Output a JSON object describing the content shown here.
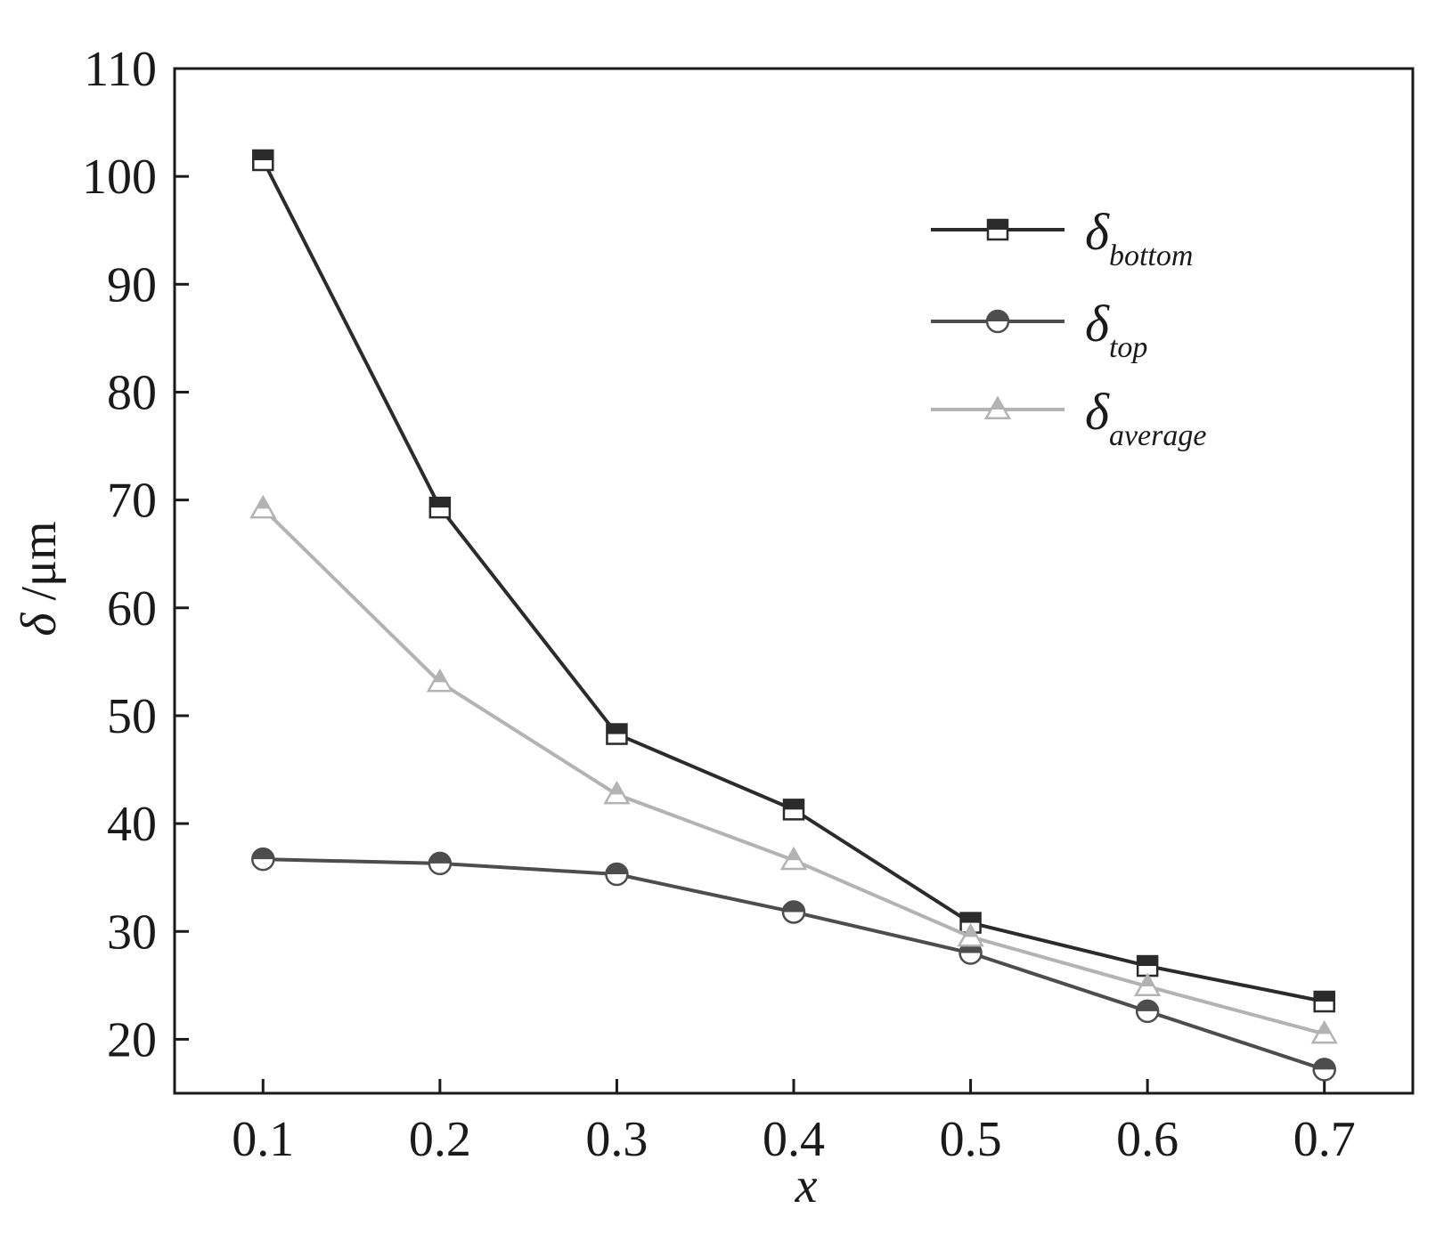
{
  "chart_data": {
    "type": "line",
    "xlabel": "x",
    "ylabel": "δ /μm",
    "ylabel_symbol": "δ",
    "ylabel_unit": " /μm",
    "xlim": [
      0.05,
      0.75
    ],
    "ylim": [
      15,
      110
    ],
    "x": [
      0.1,
      0.2,
      0.3,
      0.4,
      0.5,
      0.6,
      0.7
    ],
    "x_ticks": [
      0.1,
      0.2,
      0.3,
      0.4,
      0.5,
      0.6,
      0.7
    ],
    "x_tick_labels": [
      "0.1",
      "0.2",
      "0.3",
      "0.4",
      "0.5",
      "0.6",
      "0.7"
    ],
    "y_ticks": [
      20,
      30,
      40,
      50,
      60,
      70,
      80,
      90,
      100,
      110
    ],
    "y_tick_labels": [
      "20",
      "30",
      "40",
      "50",
      "60",
      "70",
      "80",
      "90",
      "100",
      "110"
    ],
    "grid": false,
    "legend_position": "top-right",
    "series": [
      {
        "name": "δbottom",
        "symbol": "δ",
        "subscript": "bottom",
        "marker": "square",
        "color": "#2b2b2b",
        "values": [
          101.5,
          69.3,
          48.3,
          41.3,
          30.8,
          26.8,
          23.5
        ]
      },
      {
        "name": "δtop",
        "symbol": "δ",
        "subscript": "top",
        "marker": "circle",
        "color": "#4d4d4d",
        "values": [
          36.7,
          36.3,
          35.3,
          31.8,
          28.0,
          22.6,
          17.2
        ]
      },
      {
        "name": "δaverage",
        "symbol": "δ",
        "subscript": "average",
        "marker": "triangle",
        "color": "#b3b3b3",
        "values": [
          69.2,
          53.1,
          42.7,
          36.6,
          29.5,
          24.9,
          20.5
        ]
      }
    ]
  }
}
